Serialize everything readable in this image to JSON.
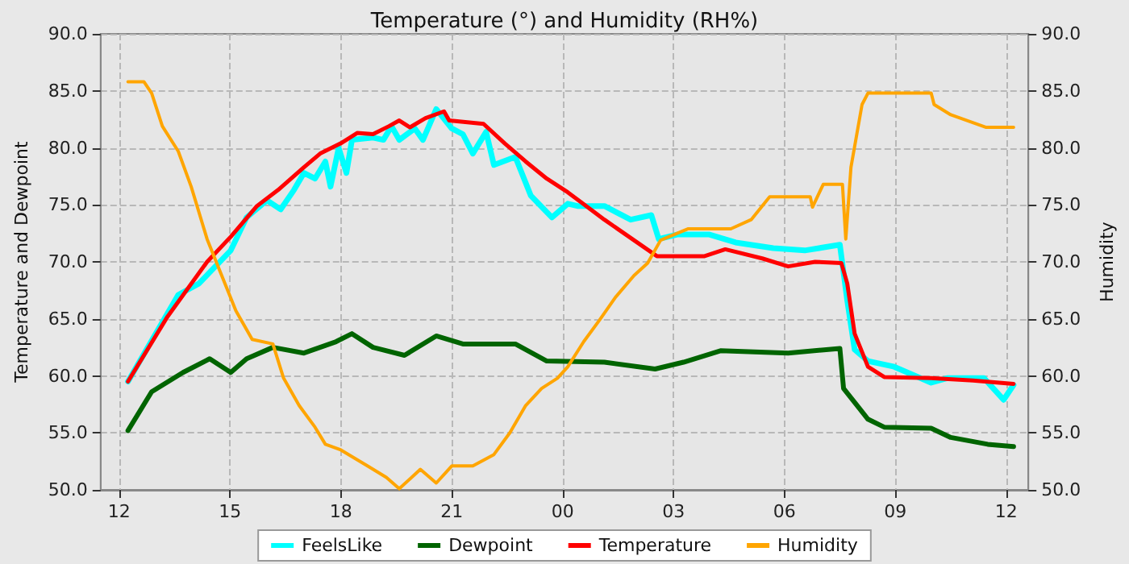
{
  "chart_data": {
    "type": "line",
    "title": "Temperature (°) and Humidity (RH%)",
    "ylabel": "Temperature and Dewpoint",
    "y2label": "Humidity",
    "xlim": [
      11.5,
      36.6
    ],
    "xticks": [
      {
        "value": 12,
        "label": "12"
      },
      {
        "value": 15,
        "label": "15"
      },
      {
        "value": 18,
        "label": "18"
      },
      {
        "value": 21,
        "label": "21"
      },
      {
        "value": 24,
        "label": "00"
      },
      {
        "value": 27,
        "label": "03"
      },
      {
        "value": 30,
        "label": "06"
      },
      {
        "value": 33,
        "label": "09"
      },
      {
        "value": 36,
        "label": "12"
      }
    ],
    "ylim": [
      50,
      90
    ],
    "yticks": [
      {
        "value": 50,
        "label": "50.0"
      },
      {
        "value": 55,
        "label": "55.0"
      },
      {
        "value": 60,
        "label": "60.0"
      },
      {
        "value": 65,
        "label": "65.0"
      },
      {
        "value": 70,
        "label": "70.0"
      },
      {
        "value": 75,
        "label": "75.0"
      },
      {
        "value": 80,
        "label": "80.0"
      },
      {
        "value": 85,
        "label": "85.0"
      },
      {
        "value": 90,
        "label": "90.0"
      }
    ],
    "y2lim": [
      50,
      90
    ],
    "y2ticks": [
      {
        "value": 50,
        "label": "50.0"
      },
      {
        "value": 55,
        "label": "55.0"
      },
      {
        "value": 60,
        "label": "60.0"
      },
      {
        "value": 65,
        "label": "65.0"
      },
      {
        "value": 70,
        "label": "70.0"
      },
      {
        "value": 75,
        "label": "75.0"
      },
      {
        "value": 80,
        "label": "80.0"
      },
      {
        "value": 85,
        "label": "85.0"
      },
      {
        "value": 90,
        "label": "90.0"
      }
    ],
    "grid": true,
    "legend": "bottom",
    "marker": "none",
    "line_style": "solid",
    "series": [
      {
        "name": "FeelsLike",
        "color": "#00ffff",
        "x": [
          12.24,
          13.6,
          14.16,
          15.02,
          15.45,
          16.0,
          16.37,
          16.73,
          17.0,
          17.3,
          17.58,
          17.72,
          17.94,
          18.15,
          18.3,
          18.87,
          19.15,
          19.37,
          19.58,
          20.0,
          20.22,
          20.58,
          21.0,
          21.3,
          21.57,
          21.93,
          22.14,
          22.72,
          23.14,
          23.71,
          24.14,
          24.4,
          25.13,
          25.84,
          26.4,
          26.6,
          27.1,
          27.97,
          28.68,
          29.7,
          30.55,
          31.5,
          31.7,
          31.9,
          32.26,
          32.97,
          33.97,
          34.4,
          35.4,
          35.93,
          36.2
        ],
        "values": [
          59.5,
          67.1,
          68.1,
          71.0,
          73.9,
          75.4,
          74.6,
          76.3,
          77.8,
          77.3,
          78.8,
          76.6,
          80.0,
          77.8,
          80.7,
          80.9,
          80.7,
          81.9,
          80.7,
          81.7,
          80.7,
          83.4,
          81.7,
          81.2,
          79.5,
          81.4,
          78.5,
          79.2,
          75.8,
          73.9,
          75.1,
          74.9,
          74.9,
          73.7,
          74.1,
          72.0,
          72.4,
          72.4,
          71.7,
          71.2,
          71.0,
          71.5,
          66.6,
          62.3,
          61.3,
          60.8,
          59.4,
          59.8,
          59.8,
          57.9,
          59.2
        ]
      },
      {
        "name": "Dewpoint",
        "color": "#006400",
        "x": [
          12.24,
          12.88,
          13.73,
          14.45,
          15.02,
          15.45,
          16.16,
          17.0,
          17.87,
          18.3,
          18.87,
          19.72,
          20.58,
          21.3,
          22.72,
          23.57,
          25.13,
          26.5,
          27.27,
          28.27,
          30.1,
          31.5,
          31.6,
          32.26,
          32.7,
          33.97,
          34.5,
          35.5,
          36.2
        ],
        "values": [
          55.2,
          58.6,
          60.3,
          61.5,
          60.3,
          61.5,
          62.5,
          62.0,
          63.0,
          63.7,
          62.5,
          61.8,
          63.5,
          62.8,
          62.8,
          61.3,
          61.2,
          60.6,
          61.2,
          62.2,
          62.0,
          62.4,
          58.9,
          56.2,
          55.5,
          55.4,
          54.6,
          54.0,
          53.8
        ]
      },
      {
        "name": "Temperature",
        "color": "#ff0000",
        "x": [
          12.24,
          13.31,
          14.38,
          15.02,
          15.73,
          16.3,
          17.0,
          17.44,
          18.0,
          18.44,
          18.87,
          19.3,
          19.58,
          19.87,
          20.29,
          20.79,
          20.93,
          21.86,
          22.43,
          23.0,
          23.57,
          24.14,
          25.13,
          26.55,
          27.84,
          28.4,
          29.4,
          30.1,
          30.83,
          31.54,
          31.7,
          31.9,
          32.26,
          32.7,
          33.97,
          35.1,
          36.2
        ],
        "values": [
          59.5,
          65.2,
          70.0,
          72.2,
          74.9,
          76.3,
          78.3,
          79.5,
          80.4,
          81.3,
          81.2,
          81.9,
          82.4,
          81.8,
          82.6,
          83.2,
          82.4,
          82.1,
          80.4,
          78.8,
          77.3,
          76.1,
          73.7,
          70.5,
          70.5,
          71.1,
          70.3,
          69.6,
          70.0,
          69.9,
          68.1,
          63.7,
          60.8,
          59.9,
          59.8,
          59.6,
          59.3
        ]
      },
      {
        "name": "Humidity",
        "color": "#ffa500",
        "axis": "y2",
        "x": [
          12.24,
          12.67,
          12.88,
          13.17,
          13.6,
          13.95,
          14.38,
          14.8,
          15.16,
          15.6,
          16.16,
          16.45,
          16.87,
          17.3,
          17.58,
          18.0,
          18.72,
          19.23,
          19.58,
          20.15,
          20.58,
          21.0,
          21.57,
          22.14,
          22.57,
          23.0,
          23.43,
          23.86,
          24.14,
          24.57,
          25.0,
          25.43,
          25.93,
          26.3,
          26.65,
          27.4,
          28.55,
          29.1,
          29.6,
          30.7,
          30.76,
          31.05,
          31.57,
          31.66,
          31.8,
          32.1,
          32.26,
          33.97,
          34.05,
          34.5,
          35.46,
          36.2
        ],
        "values": [
          85.8,
          85.8,
          84.8,
          81.9,
          79.7,
          76.6,
          72.0,
          68.6,
          65.7,
          63.2,
          62.8,
          59.8,
          57.4,
          55.5,
          54.0,
          53.5,
          52.1,
          51.1,
          50.1,
          51.8,
          50.6,
          52.1,
          52.1,
          53.1,
          55.0,
          57.4,
          58.9,
          59.8,
          60.8,
          63.0,
          64.9,
          66.9,
          68.8,
          69.9,
          71.9,
          72.9,
          72.9,
          73.7,
          75.7,
          75.7,
          74.8,
          76.8,
          76.8,
          72.0,
          78.3,
          83.8,
          84.8,
          84.8,
          83.8,
          82.9,
          81.8,
          81.8
        ]
      }
    ]
  }
}
